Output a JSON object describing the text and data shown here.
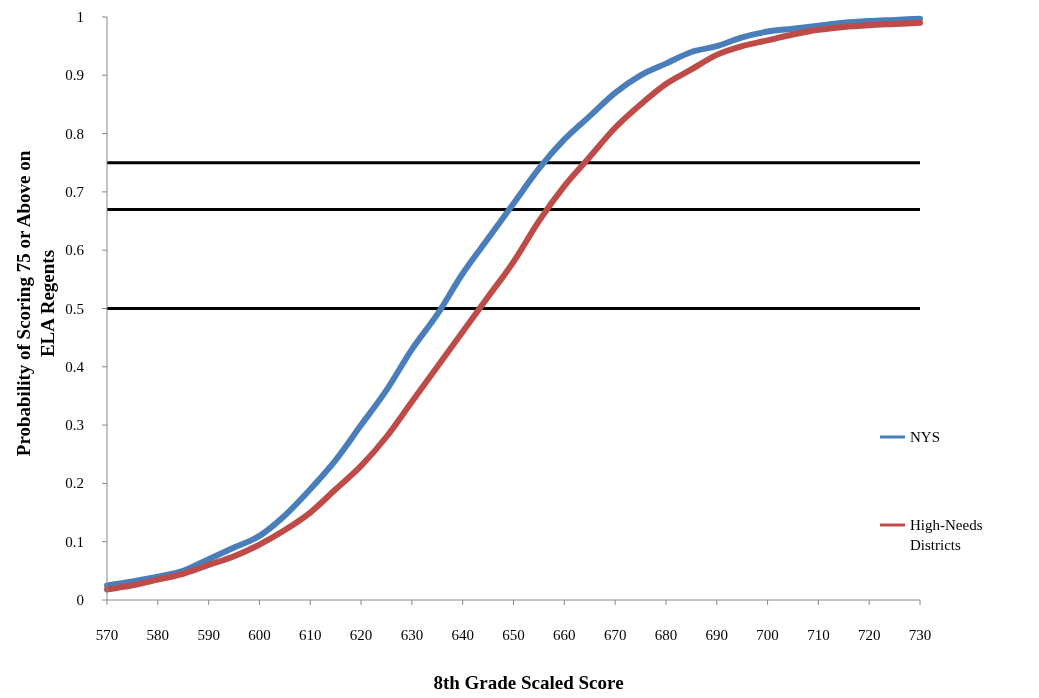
{
  "chart_data": {
    "type": "line",
    "xlabel": "8th Grade Scaled Score",
    "ylabel": "Probability of Scoring 75 or Above on ELA Regents",
    "x": [
      570,
      575,
      580,
      585,
      590,
      595,
      600,
      605,
      610,
      615,
      620,
      625,
      630,
      635,
      640,
      645,
      650,
      655,
      660,
      665,
      670,
      675,
      680,
      685,
      690,
      695,
      700,
      705,
      710,
      715,
      720,
      725,
      730
    ],
    "series": [
      {
        "name": "NYS",
        "color": "#4a7ebb",
        "values": [
          0.025,
          0.032,
          0.04,
          0.05,
          0.07,
          0.09,
          0.11,
          0.145,
          0.19,
          0.24,
          0.3,
          0.36,
          0.43,
          0.49,
          0.56,
          0.62,
          0.68,
          0.74,
          0.79,
          0.83,
          0.87,
          0.9,
          0.92,
          0.94,
          0.95,
          0.965,
          0.975,
          0.98,
          0.985,
          0.99,
          0.993,
          0.995,
          0.997
        ]
      },
      {
        "name": "High-Needs Districts",
        "color": "#be4b48",
        "values": [
          0.018,
          0.025,
          0.035,
          0.045,
          0.06,
          0.075,
          0.095,
          0.12,
          0.15,
          0.19,
          0.23,
          0.28,
          0.34,
          0.4,
          0.46,
          0.52,
          0.58,
          0.65,
          0.71,
          0.76,
          0.81,
          0.85,
          0.885,
          0.91,
          0.935,
          0.95,
          0.96,
          0.97,
          0.978,
          0.983,
          0.986,
          0.988,
          0.99
        ]
      }
    ],
    "xlim": [
      570,
      730
    ],
    "xticks": [
      570,
      580,
      590,
      600,
      610,
      620,
      630,
      640,
      650,
      660,
      670,
      680,
      690,
      700,
      710,
      720,
      730
    ],
    "ylim": [
      0,
      1
    ],
    "yticks": [
      0,
      0.1,
      0.2,
      0.3,
      0.4,
      0.5,
      0.6,
      0.7,
      0.8,
      0.9,
      1
    ],
    "ref_lines": [
      {
        "axis": "y",
        "value": 0.75,
        "color": "#000000"
      },
      {
        "axis": "y",
        "value": 0.67,
        "color": "#000000"
      },
      {
        "axis": "y",
        "value": 0.5,
        "color": "#000000"
      }
    ],
    "legend": "right",
    "grid": false,
    "marker": "none",
    "line_style": "solid"
  }
}
